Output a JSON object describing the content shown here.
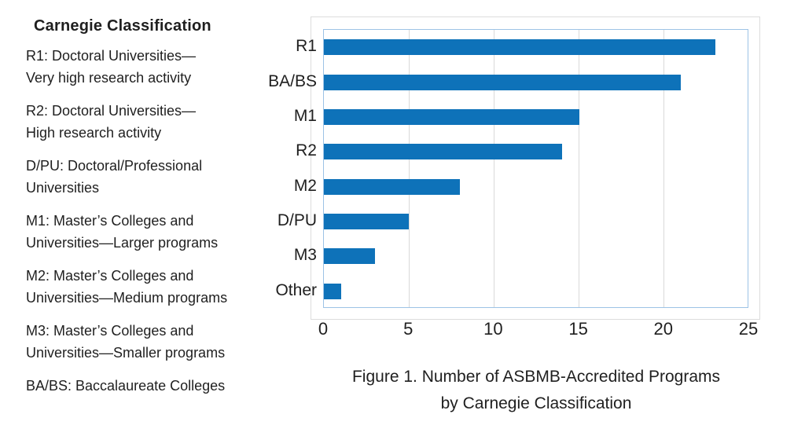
{
  "legend": {
    "title": "Carnegie Classification",
    "entries": [
      {
        "line1": "R1: Doctoral Universities—",
        "line2": "Very high research activity"
      },
      {
        "line1": "R2: Doctoral Universities—",
        "line2": "High research activity"
      },
      {
        "line1": "D/PU: Doctoral/Professional",
        "line2": "Universities"
      },
      {
        "line1": "M1: Master’s Colleges and",
        "line2": "Universities—Larger programs"
      },
      {
        "line1": "M2: Master’s Colleges and",
        "line2": "Universities—Medium programs"
      },
      {
        "line1": "M3: Master’s Colleges and",
        "line2": "Universities—Smaller programs"
      },
      {
        "line1": "BA/BS: Baccalaureate Colleges"
      }
    ]
  },
  "chart_data": {
    "type": "bar",
    "orientation": "horizontal",
    "categories": [
      "R1",
      "BA/BS",
      "M1",
      "R2",
      "M2",
      "D/PU",
      "M3",
      "Other"
    ],
    "values": [
      23,
      21,
      15,
      14,
      8,
      5,
      3,
      1
    ],
    "x_ticks": [
      0,
      5,
      10,
      15,
      20,
      25
    ],
    "xlim": [
      0,
      25
    ],
    "grid": true,
    "legend_position": "none",
    "bar_color": "#0e72b9",
    "plot_border_color": "#9dc3e6",
    "gridline_color": "#d9d9d9",
    "caption": {
      "line1": "Figure 1. Number of ASBMB-Accredited Programs",
      "line2": "by Carnegie Classification"
    }
  }
}
